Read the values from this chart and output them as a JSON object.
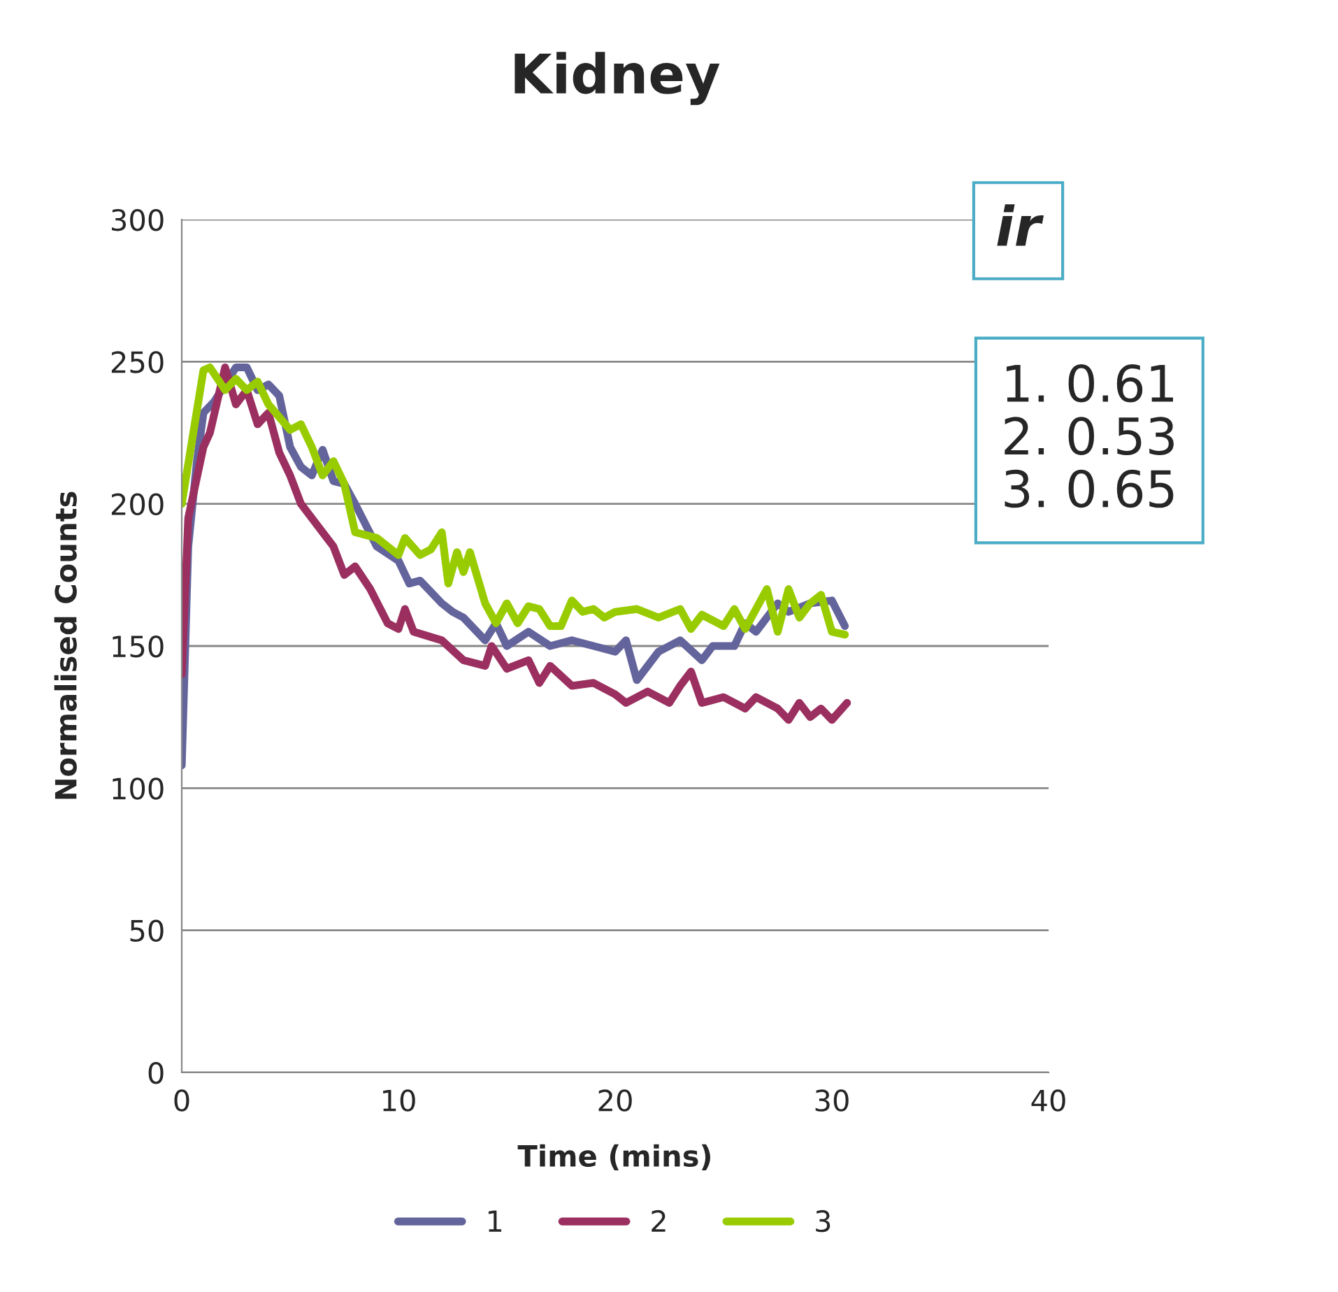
{
  "chart_data": {
    "type": "line",
    "title": "Kidney",
    "xlabel": "Time (mins)",
    "ylabel": "Normalised Counts",
    "xlim": [
      0,
      40
    ],
    "xticks": [
      0,
      10,
      20,
      30,
      40
    ],
    "ylim": [
      0,
      300
    ],
    "yticks": [
      0,
      50,
      100,
      150,
      200,
      250,
      300
    ],
    "grid": "y",
    "legend": "bottom",
    "marker": "none",
    "line_style": "solid",
    "annotations": [
      "ir",
      "1. 0.61\n2. 0.53\n3. 0.65"
    ],
    "series": [
      {
        "name": "1",
        "color": "#64649c",
        "x": [
          0,
          0.3,
          0.7,
          1,
          1.5,
          2,
          2.5,
          3,
          3.5,
          4,
          4.5,
          5,
          5.5,
          6,
          6.5,
          7,
          7.5,
          8,
          9,
          10,
          10.5,
          11,
          12,
          12.5,
          13,
          14,
          14.5,
          15,
          16,
          17,
          18,
          19,
          20,
          20.5,
          21,
          22,
          23,
          24,
          24.5,
          25.5,
          26,
          26.5,
          27.5,
          28,
          29,
          30,
          30.6
        ],
        "values": [
          108,
          185,
          215,
          232,
          236,
          242,
          248,
          248,
          240,
          242,
          238,
          220,
          213,
          210,
          219,
          208,
          207,
          200,
          185,
          180,
          172,
          173,
          165,
          162,
          160,
          152,
          158,
          150,
          155,
          150,
          152,
          150,
          148,
          152,
          138,
          148,
          152,
          145,
          150,
          150,
          158,
          155,
          165,
          162,
          165,
          166,
          157
        ]
      },
      {
        "name": "2",
        "color": "#9b2f60",
        "x": [
          0,
          0.3,
          1,
          1.3,
          2,
          2.5,
          3,
          3.5,
          4,
          4.5,
          5,
          5.5,
          6.5,
          7,
          7.5,
          8,
          8.7,
          9.5,
          10,
          10.3,
          10.7,
          12,
          13,
          14,
          14.3,
          15,
          16,
          16.5,
          17,
          18,
          19,
          20,
          20.5,
          21.5,
          22.5,
          23,
          23.5,
          24,
          25,
          26,
          26.5,
          27.5,
          28,
          28.5,
          29,
          29.5,
          30,
          30.7
        ],
        "values": [
          140,
          195,
          220,
          225,
          248,
          235,
          240,
          228,
          232,
          218,
          210,
          200,
          190,
          185,
          175,
          178,
          170,
          158,
          156,
          163,
          155,
          152,
          145,
          143,
          150,
          142,
          145,
          137,
          143,
          136,
          137,
          133,
          130,
          134,
          130,
          136,
          141,
          130,
          132,
          128,
          132,
          128,
          124,
          130,
          125,
          128,
          124,
          130
        ]
      },
      {
        "name": "3",
        "color": "#99cc00",
        "x": [
          0,
          1,
          1.3,
          2,
          2.5,
          3,
          3.5,
          4,
          5,
          5.5,
          6,
          6.5,
          7,
          7.5,
          8,
          9,
          10,
          10.3,
          11,
          11.5,
          12,
          12.3,
          12.7,
          13,
          13.3,
          14,
          14.5,
          15,
          15.5,
          16,
          16.5,
          17,
          17.5,
          18,
          18.5,
          19,
          19.5,
          20,
          21,
          22,
          23,
          23.5,
          24,
          25,
          25.5,
          26,
          26.5,
          27,
          27.5,
          28,
          28.5,
          29,
          29.5,
          30,
          30.6
        ],
        "values": [
          200,
          247,
          248,
          240,
          244,
          240,
          243,
          235,
          226,
          228,
          220,
          210,
          215,
          207,
          190,
          188,
          182,
          188,
          182,
          184,
          190,
          172,
          183,
          176,
          183,
          165,
          158,
          165,
          158,
          164,
          163,
          157,
          157,
          166,
          162,
          163,
          160,
          162,
          163,
          160,
          163,
          156,
          161,
          157,
          163,
          156,
          163,
          170,
          155,
          170,
          160,
          165,
          168,
          155,
          154
        ]
      }
    ]
  }
}
